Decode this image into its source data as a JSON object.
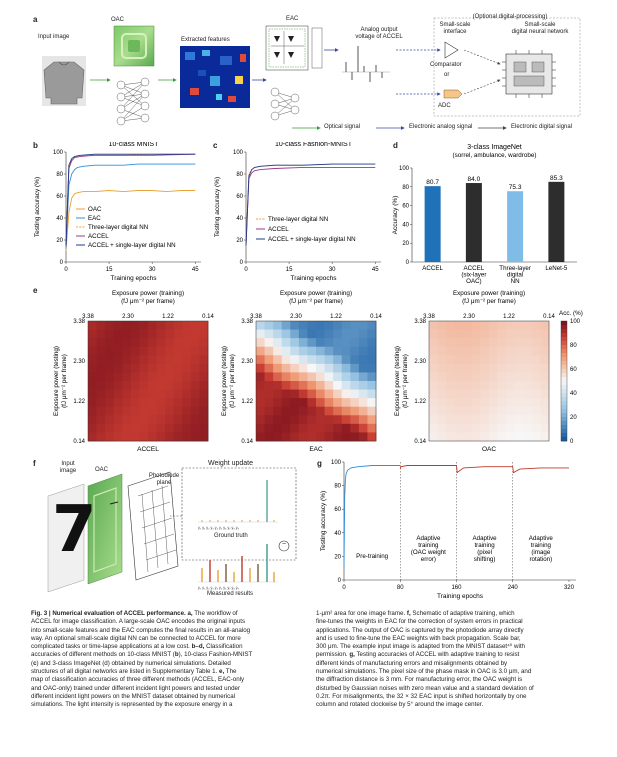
{
  "panel_a": {
    "label": "a",
    "input_image": "Input image",
    "oac": "OAC",
    "eac": "EAC",
    "extracted": "Extracted features",
    "analog_output": [
      "Analog output",
      "voltage of ACCEL"
    ],
    "optional": "(Optional digital-processing)",
    "small_interface": [
      "Small-scale",
      "interface"
    ],
    "small_nn": [
      "Small-scale",
      "digital neural network"
    ],
    "comparator": "Comparator",
    "or": "or",
    "adc": "ADC",
    "legend": [
      "Optical signal",
      "Electronic analog signal",
      "Electronic digital signal"
    ]
  },
  "colors": {
    "oac": "#e8a33a",
    "eac": "#2f8fd8",
    "three_layer": "#e8a33a",
    "accel": "#9b3a8b",
    "accel_single": "#1f3a8a",
    "bar": "#1f72b8",
    "bar_light": "#7fbde8",
    "bar_dark": "#2d2d2d"
  },
  "chart_data": [
    {
      "panel": "b",
      "type": "line",
      "title": "10-class MNIST",
      "xlabel": "Training epochs",
      "ylabel": "Testing accuracy (%)",
      "xticks": [
        0,
        15,
        30,
        45
      ],
      "yticks": [
        0,
        20,
        40,
        60,
        80,
        100
      ],
      "xlim": [
        0,
        47
      ],
      "ylim": [
        0,
        100
      ],
      "series": [
        {
          "name": "OAC",
          "color": "#e8a33a",
          "style": "solid",
          "x": [
            0,
            1,
            2,
            3,
            4,
            6,
            10,
            15,
            20,
            25,
            30,
            35,
            40,
            45
          ],
          "y": [
            10,
            45,
            58,
            62,
            63,
            64,
            64,
            65,
            64,
            65,
            65,
            64,
            65,
            65
          ]
        },
        {
          "name": "EAC",
          "color": "#2f8fd8",
          "style": "solid",
          "x": [
            0,
            1,
            2,
            3,
            4,
            6,
            10,
            15,
            20,
            25,
            30,
            35,
            40,
            45
          ],
          "y": [
            12,
            70,
            80,
            84,
            86,
            87,
            88,
            88,
            88,
            89,
            89,
            89,
            89,
            89
          ]
        },
        {
          "name": "Three-layer digital NN",
          "color": "#e8a33a",
          "style": "dashed",
          "x": [
            0,
            1,
            2,
            3,
            5,
            10,
            20,
            30,
            45
          ],
          "y": [
            20,
            88,
            93,
            95,
            96,
            97,
            97,
            98,
            98
          ]
        },
        {
          "name": "ACCEL",
          "color": "#9b3a8b",
          "style": "solid",
          "x": [
            0,
            1,
            2,
            3,
            5,
            10,
            20,
            30,
            45
          ],
          "y": [
            15,
            85,
            92,
            95,
            96,
            97,
            97,
            97,
            98
          ]
        },
        {
          "name": "ACCEL + single-layer digital NN",
          "color": "#1f3a8a",
          "style": "solid",
          "x": [
            0,
            1,
            2,
            3,
            5,
            10,
            20,
            30,
            45
          ],
          "y": [
            15,
            88,
            94,
            96,
            97,
            98,
            98,
            98,
            98
          ]
        }
      ]
    },
    {
      "panel": "c",
      "type": "line",
      "title": "10-class Fashion-MNIST",
      "xlabel": "Training epochs",
      "ylabel": "Testing accuracy (%)",
      "xticks": [
        0,
        15,
        30,
        45
      ],
      "yticks": [
        0,
        20,
        40,
        60,
        80,
        100
      ],
      "xlim": [
        0,
        47
      ],
      "ylim": [
        0,
        100
      ],
      "series": [
        {
          "name": "Three-layer digital NN",
          "color": "#e8a33a",
          "style": "dashed",
          "x": [
            0,
            1,
            2,
            3,
            5,
            10,
            20,
            30,
            45
          ],
          "y": [
            20,
            80,
            84,
            86,
            87,
            88,
            88,
            89,
            89
          ]
        },
        {
          "name": "ACCEL",
          "color": "#9b3a8b",
          "style": "solid",
          "x": [
            0,
            1,
            2,
            3,
            5,
            10,
            20,
            30,
            45
          ],
          "y": [
            15,
            76,
            81,
            83,
            84,
            85,
            86,
            86,
            86
          ]
        },
        {
          "name": "ACCEL + single-layer digital NN",
          "color": "#1f3a8a",
          "style": "solid",
          "x": [
            0,
            1,
            2,
            3,
            5,
            10,
            20,
            30,
            45
          ],
          "y": [
            15,
            78,
            84,
            86,
            87,
            88,
            88,
            89,
            89
          ]
        }
      ]
    },
    {
      "panel": "d",
      "type": "bar",
      "title": "3-class ImageNet",
      "subtitle": "(sorrel, ambulance, wardrobe)",
      "ylabel": "Accuracy (%)",
      "yticks": [
        0,
        20,
        40,
        60,
        80,
        100
      ],
      "ylim": [
        0,
        100
      ],
      "categories": [
        "ACCEL",
        "ACCEL (six-layer OAC)",
        "Three-layer digital NN",
        "LeNet-5"
      ],
      "category_lines": [
        [
          "ACCEL"
        ],
        [
          "ACCEL",
          "(six-layer",
          "OAC)"
        ],
        [
          "Three-layer",
          "digital",
          "NN"
        ],
        [
          "LeNet-5"
        ]
      ],
      "values": [
        80.7,
        84.0,
        75.3,
        85.3
      ],
      "labels": [
        "80.7",
        "84.0",
        "75.3",
        "85.3"
      ],
      "bar_colors": [
        "#1f72b8",
        "#2d2d2d",
        "#7fbde8",
        "#2d2d2d"
      ]
    },
    {
      "panel": "e",
      "type": "heatmap",
      "top_axis_label": [
        "Exposure power (training)",
        "(fJ μm⁻² per frame)"
      ],
      "left_axis_label": [
        "Exposure power (testing)",
        "(fJ μm⁻² per frame)"
      ],
      "ticks": [
        "3.38",
        "2.30",
        "1.22",
        "0.14"
      ],
      "maps": [
        "ACCEL",
        "EAC",
        "OAC"
      ],
      "colorbar_label": "Acc. (%)",
      "colorbar_ticks": [
        100,
        80,
        60,
        40,
        20,
        0
      ]
    },
    {
      "panel": "g",
      "type": "line",
      "xlabel": "Training epochs",
      "ylabel": "Testing accuracy (%)",
      "xticks": [
        0,
        80,
        160,
        240,
        320
      ],
      "yticks": [
        0,
        20,
        40,
        60,
        80,
        100
      ],
      "xlim": [
        0,
        330
      ],
      "ylim": [
        0,
        100
      ],
      "stages": [
        "Pre-training",
        [
          "Adaptive",
          "training",
          "(OAC weight",
          "error)"
        ],
        [
          "Adaptive",
          "training",
          "(pixel",
          "shifting)"
        ],
        [
          "Adaptive",
          "training",
          "(image",
          "rotation)"
        ]
      ],
      "series": [
        {
          "name": "Pre-training",
          "color": "#2f8fd8",
          "x": [
            0,
            1,
            2,
            3,
            5,
            10,
            20,
            40,
            60,
            80
          ],
          "y": [
            10,
            70,
            85,
            90,
            93,
            95,
            96,
            97,
            97,
            97
          ]
        },
        {
          "name": "Adaptive",
          "color": "#c0392b",
          "x": [
            80,
            81,
            90,
            120,
            160,
            161,
            170,
            200,
            240,
            241,
            250,
            280,
            320
          ],
          "y": [
            94,
            96,
            97,
            97,
            97,
            91,
            95,
            96,
            96,
            91,
            94,
            95,
            95
          ]
        }
      ]
    }
  ],
  "panel_f": {
    "label": "f",
    "input_image": [
      "Input",
      "image"
    ],
    "oac": "OAC",
    "photodiode": [
      "Photodiode",
      "plane"
    ],
    "weight_update": "Weight update",
    "ground_truth": "Ground truth",
    "measured": "Measured results",
    "minus": "−",
    "digit": "7"
  },
  "caption": {
    "left": [
      {
        "b": "Fig. 3 | Numerical evaluation of ACCEL performance. a,",
        "t": " The workflow of"
      },
      {
        "t": "ACCEL for image classification. A large-scale OAC encodes the original inputs"
      },
      {
        "t": "into small-scale features and the EAC computes the final results in an all-analog"
      },
      {
        "t": "way. An optional small-scale digital NN can be connected to ACCEL for more"
      },
      {
        "t": "complicated tasks or time-lapse applications at a low cost. ",
        "b2": "b–d,",
        "t2": " Classification"
      },
      {
        "t": "accuracies of different methods on 10-class MNIST (",
        "b2": "b",
        "t2": "), 10-class Fashion-MNIST"
      },
      {
        "t": "(",
        "b2": "c",
        "t2": ") and 3-class ImageNet (d) obtained by numerical simulations. Detailed"
      },
      {
        "t": "structures of all digital networks are listed in Supplementary Table 1. ",
        "b2": "e,",
        "t2": " The"
      },
      {
        "t": "map of classification accuracies of three different methods (ACCEL, EAC-only"
      },
      {
        "t": "and OAC-only) trained under different incident light powers and tested under"
      },
      {
        "t": "different incident light powers on the MNIST dataset obtained by numerical"
      },
      {
        "t": "simulations. The light intensity is represented by the exposure energy in a"
      }
    ],
    "right": [
      {
        "t": "1-μm² area for one image frame. ",
        "b2": "f,",
        "t2": " Schematic of adaptive training, which"
      },
      {
        "t": "fine-tunes the weights in EAC for the correction of system errors in practical"
      },
      {
        "t": "applications. The output of OAC is captured by the photodiode array directly"
      },
      {
        "t": "and is used to fine-tune the EAC weights with back propagation. Scale bar,"
      },
      {
        "t": "300 μm. The example input image is adapted from the MNIST dataset⁴⁰ with"
      },
      {
        "t": "permission. ",
        "b2": "g,",
        "t2": " Testing accuracies of ACCEL with adaptive training to resist"
      },
      {
        "t": "different kinds of manufacturing errors and misalignments obtained by"
      },
      {
        "t": "numerical simulations. The pixel size of the phase mask in OAC is 3.0 μm, and"
      },
      {
        "t": "the diffraction distance is 3 mm. For manufacturing error, the OAC weight is"
      },
      {
        "t": "disturbed by Gaussian noises with zero mean value and a standard deviation of"
      },
      {
        "t": "0.2π. For misalignments, the 32 × 32 EAC input is shifted horizontally by one"
      },
      {
        "t": "column and rotated clockwise by 5° around the image center."
      }
    ]
  }
}
